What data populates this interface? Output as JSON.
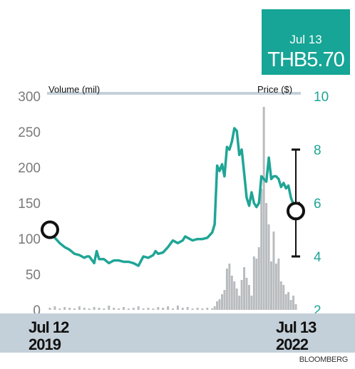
{
  "header": {
    "date": "Jul 13",
    "price": "THB5.70"
  },
  "footer": {
    "source": "BLOOMBERG"
  },
  "colors": {
    "price_line": "#1fa596",
    "volume_bar": "#b9bcbf",
    "band": "#c4d0d9",
    "price_box": "#16a596"
  },
  "chart_data": {
    "type": "line",
    "title": "",
    "x_range": [
      "Jul 12 2019",
      "Jul 13 2022"
    ],
    "x_tick_labels": [
      {
        "line1": "Jul 12",
        "line2": "2019"
      },
      {
        "line1": "Jul 13",
        "line2": "2022"
      }
    ],
    "y_left": {
      "label": "Volume (mil)",
      "range": [
        0,
        300
      ],
      "ticks": [
        "0",
        "50",
        "100",
        "150",
        "200",
        "250",
        "300"
      ]
    },
    "y_right": {
      "label": "Price ($)",
      "range": [
        2,
        10
      ],
      "ticks": [
        "2",
        "4",
        "6",
        "8",
        "10"
      ]
    },
    "grid": false,
    "markers": [
      {
        "x": 0.0,
        "label": "start",
        "price": 5.0
      },
      {
        "x": 1.0,
        "label": "end",
        "price": 5.7
      }
    ],
    "series": [
      {
        "axis": "right",
        "x": [
          0.0,
          0.02,
          0.04,
          0.06,
          0.08,
          0.1,
          0.12,
          0.14,
          0.15,
          0.16,
          0.18,
          0.19,
          0.2,
          0.22,
          0.24,
          0.26,
          0.28,
          0.3,
          0.32,
          0.34,
          0.36,
          0.38,
          0.4,
          0.42,
          0.43,
          0.44,
          0.46,
          0.48,
          0.5,
          0.52,
          0.54,
          0.55,
          0.56,
          0.58,
          0.6,
          0.62,
          0.64,
          0.66,
          0.67,
          0.68,
          0.69,
          0.7,
          0.71,
          0.72,
          0.73,
          0.74,
          0.75,
          0.76,
          0.77,
          0.78,
          0.79,
          0.8,
          0.81,
          0.82,
          0.83,
          0.84,
          0.85,
          0.86,
          0.87,
          0.88,
          0.89,
          0.9,
          0.91,
          0.92,
          0.93,
          0.94,
          0.95,
          0.96,
          0.97,
          0.98,
          0.99,
          1.0
        ],
        "y": [
          5.0,
          4.7,
          4.5,
          4.35,
          4.25,
          4.1,
          4.05,
          3.95,
          4.0,
          4.0,
          3.75,
          4.2,
          3.9,
          3.9,
          3.75,
          3.85,
          3.85,
          3.8,
          3.8,
          3.75,
          3.65,
          4.0,
          3.95,
          4.05,
          4.2,
          4.1,
          4.15,
          4.35,
          4.6,
          4.5,
          4.6,
          4.75,
          4.7,
          4.6,
          4.65,
          4.65,
          4.7,
          4.9,
          5.2,
          7.4,
          7.2,
          7.45,
          7.0,
          8.1,
          8.0,
          8.3,
          8.8,
          8.7,
          7.8,
          8.0,
          7.1,
          6.2,
          5.9,
          6.4,
          6.0,
          5.85,
          6.0,
          7.0,
          6.9,
          6.8,
          7.7,
          6.9,
          7.0,
          7.0,
          6.9,
          6.6,
          6.75,
          6.55,
          6.65,
          6.2,
          5.95,
          5.7
        ]
      },
      {
        "axis": "left",
        "x": [
          0.0,
          0.02,
          0.04,
          0.06,
          0.08,
          0.1,
          0.12,
          0.14,
          0.16,
          0.18,
          0.2,
          0.22,
          0.24,
          0.26,
          0.28,
          0.3,
          0.32,
          0.34,
          0.36,
          0.38,
          0.4,
          0.42,
          0.44,
          0.46,
          0.48,
          0.5,
          0.52,
          0.54,
          0.56,
          0.58,
          0.6,
          0.62,
          0.64,
          0.66,
          0.67,
          0.68,
          0.69,
          0.7,
          0.71,
          0.72,
          0.73,
          0.74,
          0.75,
          0.76,
          0.77,
          0.78,
          0.79,
          0.8,
          0.81,
          0.82,
          0.83,
          0.84,
          0.85,
          0.86,
          0.87,
          0.88,
          0.89,
          0.9,
          0.91,
          0.92,
          0.93,
          0.94,
          0.95,
          0.96,
          0.97,
          0.98,
          0.99,
          1.0
        ],
        "y": [
          3,
          5,
          2,
          4,
          3,
          2,
          5,
          3,
          2,
          4,
          3,
          2,
          6,
          3,
          2,
          4,
          2,
          3,
          5,
          2,
          3,
          2,
          4,
          3,
          5,
          2,
          6,
          3,
          4,
          2,
          3,
          2,
          3,
          2,
          5,
          12,
          15,
          22,
          28,
          58,
          65,
          48,
          40,
          30,
          20,
          42,
          60,
          45,
          35,
          20,
          75,
          72,
          88,
          170,
          285,
          150,
          120,
          68,
          110,
          65,
          72,
          40,
          35,
          22,
          25,
          14,
          20,
          8
        ]
      }
    ]
  }
}
